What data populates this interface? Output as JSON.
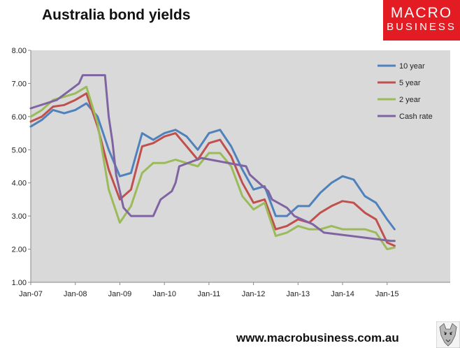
{
  "header": {
    "title": "Australia bond yields"
  },
  "brand": {
    "line1": "MACRO",
    "line2": "BUSINESS",
    "color": "#e31b23"
  },
  "footer": {
    "url": "www.macrobusiness.com.au"
  },
  "chart_data": {
    "type": "line",
    "title": "",
    "xlabel": "",
    "ylabel": "",
    "ylim": [
      1.0,
      8.0
    ],
    "yticks": [
      "1.00",
      "2.00",
      "3.00",
      "4.00",
      "5.00",
      "6.00",
      "7.00",
      "8.00"
    ],
    "xticks": [
      "Jan-07",
      "Jan-08",
      "Jan-09",
      "Jan-10",
      "Jan-11",
      "Jan-12",
      "Jan-13",
      "Jan-14",
      "Jan-15"
    ],
    "xlim": [
      "2007-01",
      "2016-06"
    ],
    "grid": false,
    "background": "#d9d9d9",
    "legend_position": "top-right",
    "series": [
      {
        "name": "10 year",
        "color": "#4f81bd",
        "x": [
          "2007-01",
          "2007-04",
          "2007-07",
          "2007-10",
          "2008-01",
          "2008-04",
          "2008-07",
          "2008-10",
          "2009-01",
          "2009-04",
          "2009-07",
          "2009-10",
          "2010-01",
          "2010-04",
          "2010-07",
          "2010-10",
          "2011-01",
          "2011-04",
          "2011-07",
          "2011-10",
          "2012-01",
          "2012-04",
          "2012-07",
          "2012-10",
          "2013-01",
          "2013-04",
          "2013-07",
          "2013-10",
          "2014-01",
          "2014-04",
          "2014-07",
          "2014-10",
          "2015-01",
          "2015-03"
        ],
        "values": [
          5.7,
          5.9,
          6.2,
          6.1,
          6.2,
          6.4,
          6.0,
          5.0,
          4.2,
          4.3,
          5.5,
          5.3,
          5.5,
          5.6,
          5.4,
          5.0,
          5.5,
          5.6,
          5.1,
          4.4,
          3.8,
          3.9,
          3.0,
          3.0,
          3.3,
          3.3,
          3.7,
          4.0,
          4.2,
          4.1,
          3.6,
          3.4,
          2.9,
          2.6
        ]
      },
      {
        "name": "5 year",
        "color": "#c0504d",
        "x": [
          "2007-01",
          "2007-04",
          "2007-07",
          "2007-10",
          "2008-01",
          "2008-04",
          "2008-07",
          "2008-10",
          "2009-01",
          "2009-04",
          "2009-07",
          "2009-10",
          "2010-01",
          "2010-04",
          "2010-07",
          "2010-10",
          "2011-01",
          "2011-04",
          "2011-07",
          "2011-10",
          "2012-01",
          "2012-04",
          "2012-07",
          "2012-10",
          "2013-01",
          "2013-04",
          "2013-07",
          "2013-10",
          "2014-01",
          "2014-04",
          "2014-07",
          "2014-10",
          "2015-01",
          "2015-03"
        ],
        "values": [
          5.85,
          6.0,
          6.3,
          6.35,
          6.5,
          6.7,
          5.7,
          4.4,
          3.5,
          3.8,
          5.1,
          5.2,
          5.4,
          5.5,
          5.1,
          4.7,
          5.2,
          5.3,
          4.8,
          4.0,
          3.4,
          3.5,
          2.6,
          2.7,
          2.9,
          2.8,
          3.1,
          3.3,
          3.45,
          3.4,
          3.1,
          2.9,
          2.2,
          2.1
        ]
      },
      {
        "name": "2 year",
        "color": "#9bbb59",
        "x": [
          "2007-01",
          "2007-04",
          "2007-07",
          "2007-10",
          "2008-01",
          "2008-04",
          "2008-07",
          "2008-10",
          "2009-01",
          "2009-04",
          "2009-07",
          "2009-10",
          "2010-01",
          "2010-04",
          "2010-07",
          "2010-10",
          "2011-01",
          "2011-04",
          "2011-07",
          "2011-10",
          "2012-01",
          "2012-04",
          "2012-07",
          "2012-10",
          "2013-01",
          "2013-04",
          "2013-07",
          "2013-10",
          "2014-01",
          "2014-04",
          "2014-07",
          "2014-10",
          "2015-01",
          "2015-03"
        ],
        "values": [
          6.0,
          6.2,
          6.5,
          6.6,
          6.7,
          6.9,
          5.8,
          3.8,
          2.8,
          3.3,
          4.3,
          4.6,
          4.6,
          4.7,
          4.6,
          4.5,
          4.9,
          4.9,
          4.5,
          3.6,
          3.2,
          3.4,
          2.4,
          2.5,
          2.7,
          2.6,
          2.6,
          2.7,
          2.6,
          2.6,
          2.6,
          2.5,
          2.0,
          2.05
        ]
      },
      {
        "name": "Cash rate",
        "color": "#8064a2",
        "x": [
          "2007-01",
          "2007-08",
          "2007-11",
          "2008-02",
          "2008-03",
          "2008-09",
          "2008-10",
          "2008-11",
          "2008-12",
          "2009-02",
          "2009-04",
          "2009-10",
          "2009-11",
          "2009-12",
          "2010-03",
          "2010-04",
          "2010-05",
          "2010-11",
          "2011-11",
          "2011-12",
          "2012-05",
          "2012-06",
          "2012-10",
          "2012-12",
          "2013-05",
          "2013-08",
          "2015-02",
          "2015-03"
        ],
        "values": [
          6.25,
          6.5,
          6.75,
          7.0,
          7.25,
          7.25,
          6.0,
          5.25,
          4.25,
          3.25,
          3.0,
          3.0,
          3.25,
          3.5,
          3.75,
          4.0,
          4.5,
          4.75,
          4.5,
          4.25,
          3.75,
          3.5,
          3.25,
          3.0,
          2.75,
          2.5,
          2.25,
          2.25
        ]
      }
    ]
  }
}
